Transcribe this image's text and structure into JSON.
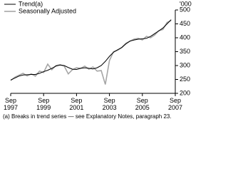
{
  "chart_data": {
    "type": "line",
    "y_label": "'000",
    "note": "(a) Breaks in trend series — see Explanatory Notes, paragraph 23.",
    "legend": "top-left",
    "x": [
      1997.75,
      1998.0,
      1998.25,
      1998.5,
      1998.75,
      1999.0,
      1999.25,
      1999.5,
      1999.75,
      2000.0,
      2000.25,
      2000.5,
      2000.75,
      2001.0,
      2001.25,
      2001.5,
      2001.75,
      2002.0,
      2002.25,
      2002.5,
      2002.75,
      2003.0,
      2003.25,
      2003.5,
      2003.75,
      2004.0,
      2004.25,
      2004.5,
      2004.75,
      2005.0,
      2005.25,
      2005.5,
      2005.75,
      2006.0,
      2006.25,
      2006.5,
      2006.75,
      2007.0,
      2007.25,
      2007.5
    ],
    "series": [
      {
        "name": "Trend(a)",
        "color": "#000000",
        "width": 1,
        "values": [
          248,
          255,
          262,
          266,
          267,
          268,
          268,
          272,
          278,
          283,
          290,
          298,
          302,
          300,
          293,
          287,
          286,
          290,
          292,
          290,
          288,
          292,
          300,
          315,
          333,
          348,
          357,
          365,
          378,
          388,
          392,
          395,
          396,
          398,
          405,
          415,
          425,
          435,
          450,
          465
        ]
      },
      {
        "name": "Seasonally Adjusted",
        "color": "#a6a6a6",
        "width": 1.6,
        "values": [
          246,
          258,
          265,
          272,
          263,
          270,
          262,
          280,
          275,
          305,
          285,
          300,
          303,
          298,
          270,
          285,
          292,
          290,
          298,
          287,
          295,
          280,
          282,
          232,
          318,
          350,
          355,
          365,
          380,
          388,
          395,
          398,
          392,
          405,
          400,
          410,
          425,
          430,
          455,
          462
        ]
      }
    ],
    "xlim": [
      1997.75,
      2007.75
    ],
    "xticks": [
      {
        "value": 1997.75,
        "label": "Sep 1997"
      },
      {
        "value": 1999.75,
        "label": "Sep 1999"
      },
      {
        "value": 2001.75,
        "label": "Sep 2001"
      },
      {
        "value": 2003.75,
        "label": "Sep 2003"
      },
      {
        "value": 2005.75,
        "label": "Sep 2005"
      },
      {
        "value": 2007.75,
        "label": "Sep 2007"
      }
    ],
    "ylim": [
      200,
      500
    ],
    "yticks": [
      200,
      250,
      300,
      350,
      400,
      450,
      500
    ]
  }
}
